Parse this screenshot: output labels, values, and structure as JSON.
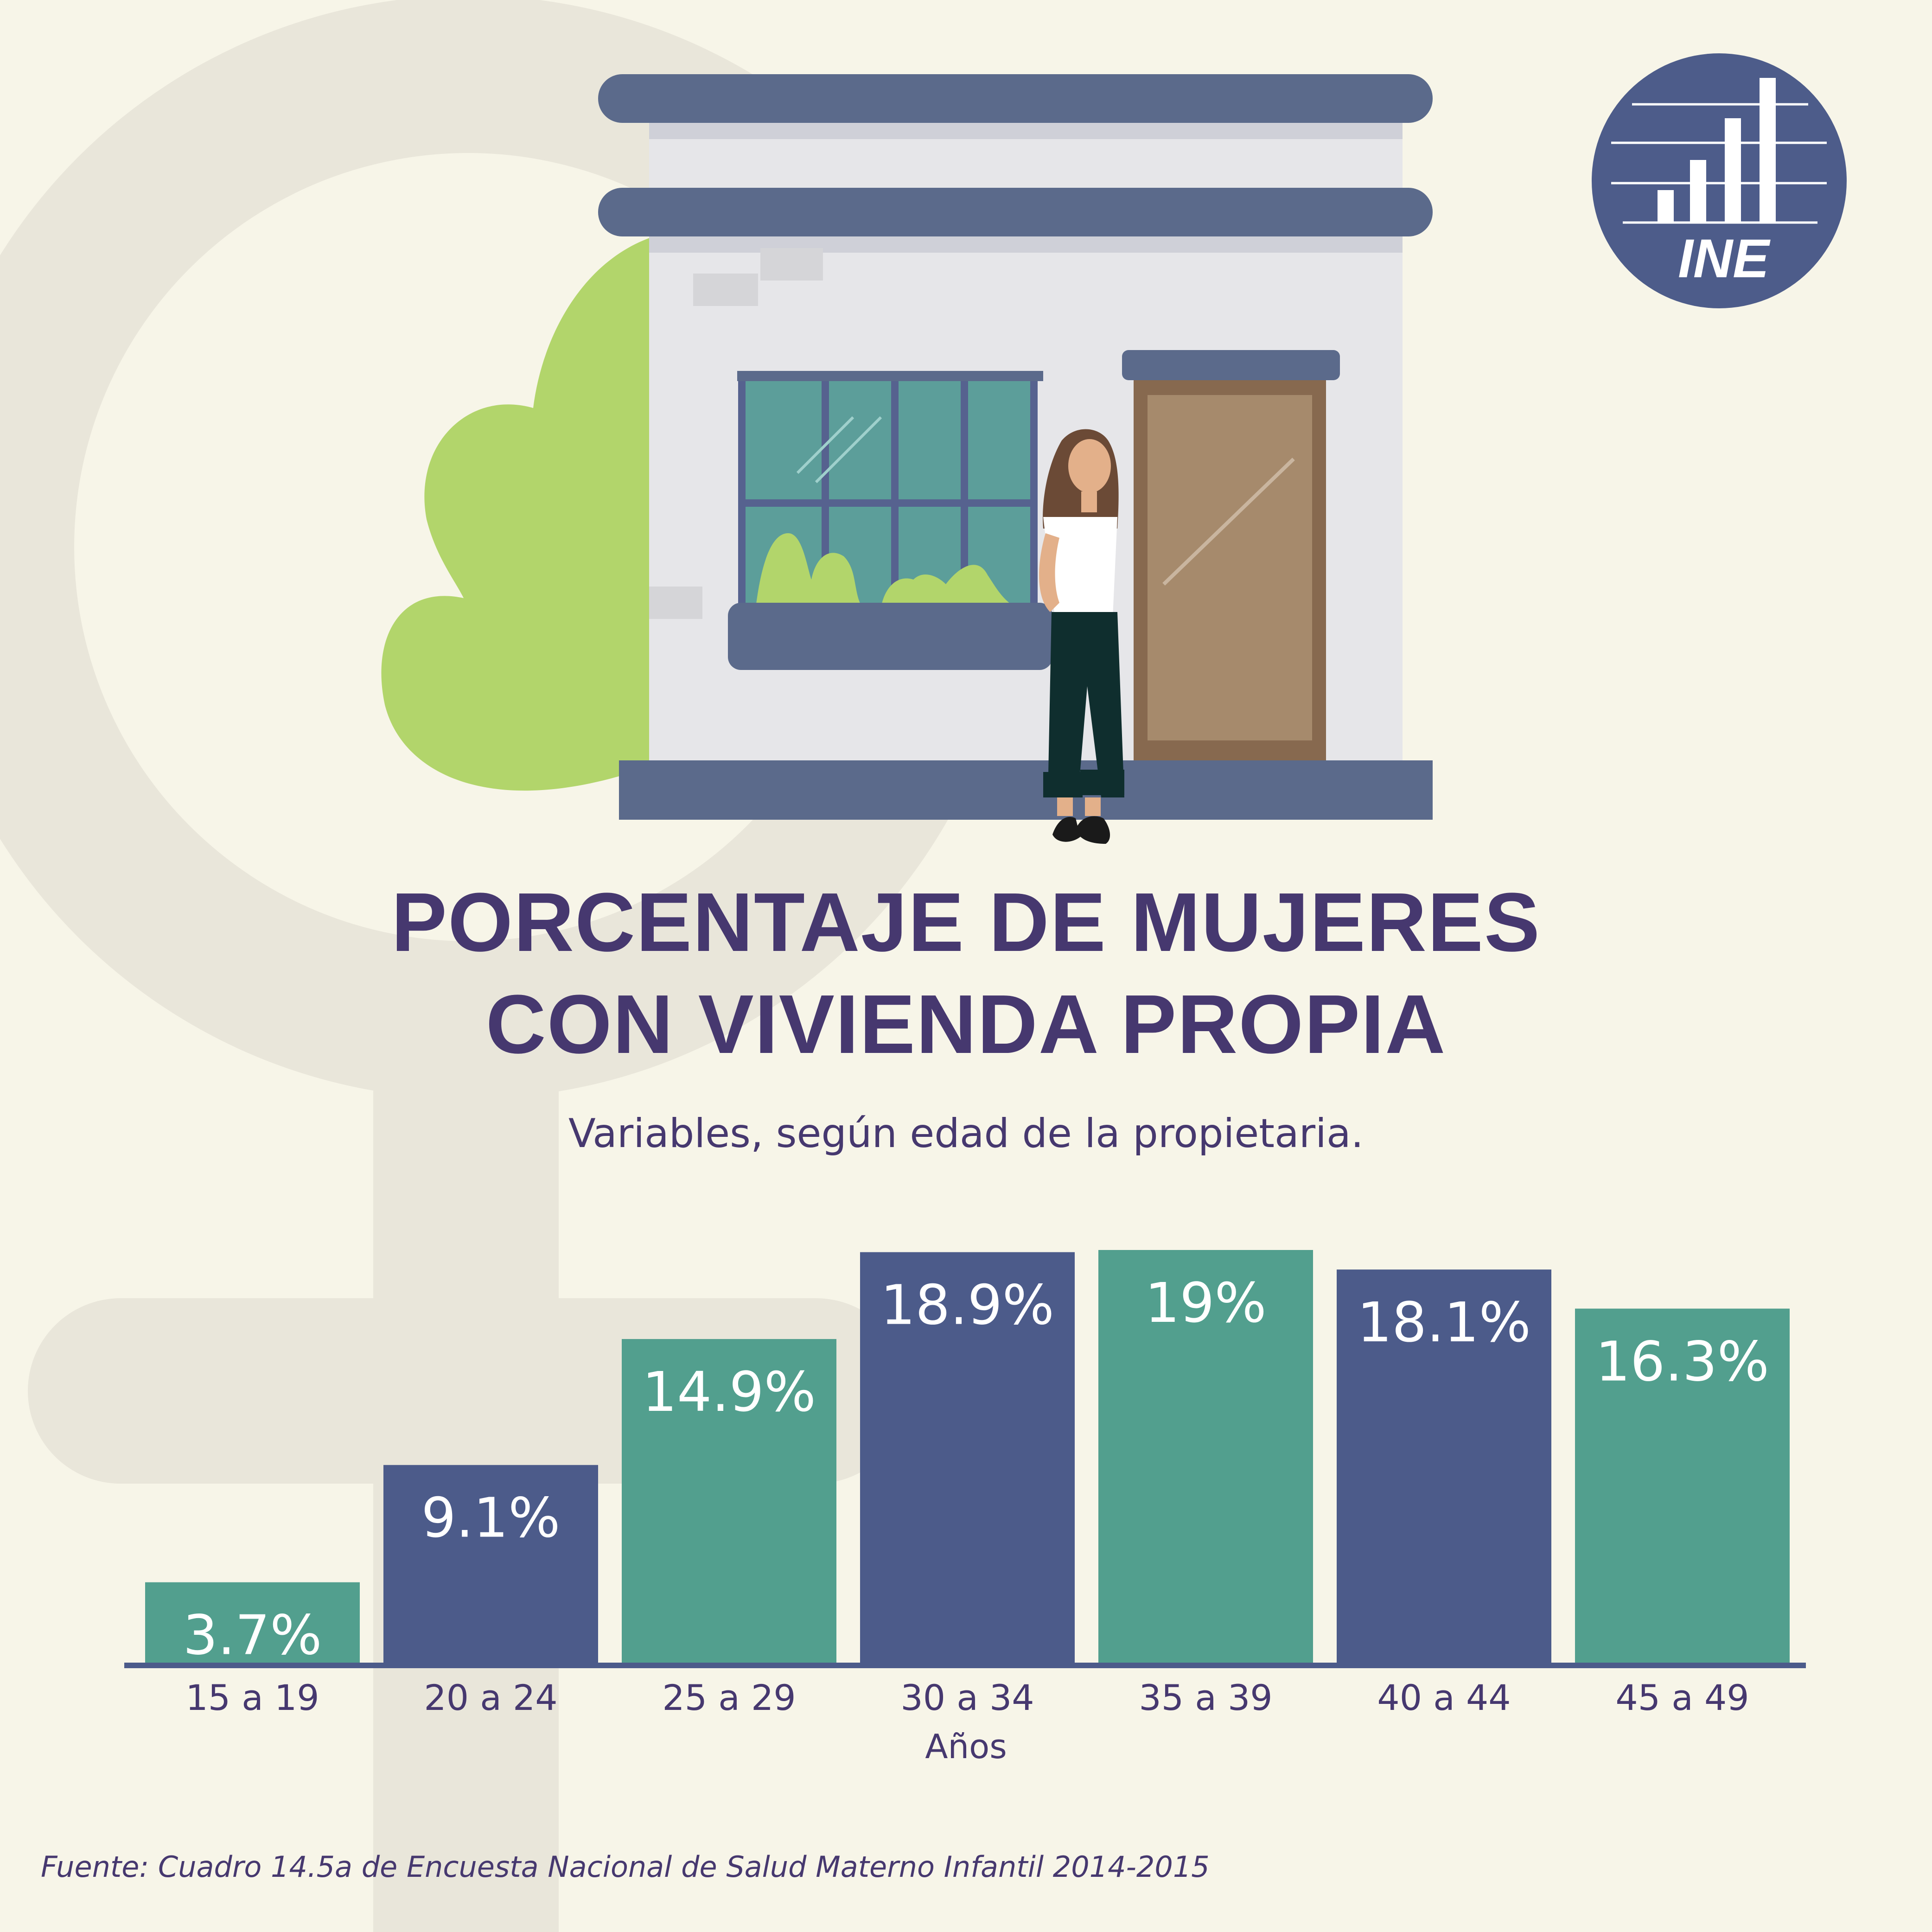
{
  "header": {
    "title_line1": "PORCENTAJE DE MUJERES",
    "title_line2": "CON VIVIENDA PROPIA",
    "subtitle": "Variables, según edad de la propietaria."
  },
  "logo": {
    "text": "INE",
    "icon": "bar-chart-icon"
  },
  "footer": {
    "source": "Fuente: Cuadro 14.5a de Encuesta Nacional de Salud Materno Infantil 2014-2015"
  },
  "colors": {
    "background": "#f7f5e8",
    "navy": "#4c5b8a",
    "teal": "#529f8e",
    "text": "#46386f"
  },
  "chart_data": {
    "type": "bar",
    "categories": [
      "15 a 19",
      "20 a 24",
      "25 a 29",
      "30 a 34",
      "35 a 39",
      "40 a 44",
      "45 a 49"
    ],
    "values": [
      3.7,
      9.1,
      14.9,
      18.9,
      19,
      18.1,
      16.3
    ],
    "value_labels": [
      "3.7%",
      "9.1%",
      "14.9%",
      "18.9%",
      "19%",
      "18.1%",
      "16.3%"
    ],
    "bar_colors": [
      "#529f8e",
      "#4c5b8a",
      "#529f8e",
      "#4c5b8a",
      "#529f8e",
      "#4c5b8a",
      "#529f8e"
    ],
    "xlabel": "Años",
    "ylabel": "",
    "ylim": [
      0,
      19
    ],
    "grid": false,
    "legend": "none"
  }
}
